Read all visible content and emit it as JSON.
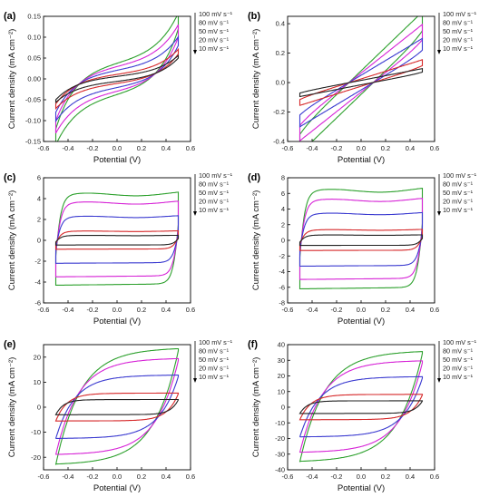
{
  "chart_data": [
    {
      "panel": "(a)",
      "type": "line",
      "xlabel": "Potential (V)",
      "ylabel": "Current density (mA cm⁻²)",
      "xlim": [
        -0.6,
        0.6
      ],
      "ylim": [
        -0.15,
        0.15
      ],
      "xticks": [
        -0.6,
        -0.4,
        -0.2,
        0.0,
        0.2,
        0.4,
        0.6
      ],
      "xtick_labels": [
        "-0.6",
        "-0.4",
        "-0.2",
        "0.0",
        "0.2",
        "0.4",
        "0.6"
      ],
      "yticks": [
        -0.15,
        -0.1,
        -0.05,
        0.0,
        0.05,
        0.1,
        0.15
      ],
      "ytick_labels": [
        "-0.15",
        "-0.10",
        "-0.05",
        "0.00",
        "0.05",
        "0.10",
        "0.15"
      ],
      "legend": [
        "100 mV s⁻¹",
        "80 mV s⁻¹",
        "50 mV s⁻¹",
        "20 mV s⁻¹",
        "10 mV s⁻¹"
      ],
      "legend_placement": "top-right outside",
      "series": [
        {
          "name": "100 mV s⁻¹",
          "color": "#2ca02c",
          "scale": 0.038,
          "shape": "sloped",
          "switch": 0.12,
          "ramp": 0.1,
          "end": 0.12,
          "start": -0.12
        },
        {
          "name": "80 mV s⁻¹",
          "color": "#d622d6",
          "scale": 0.03,
          "shape": "sloped",
          "switch": 0.12,
          "ramp": 0.1,
          "end": 0.1,
          "start": -0.1
        },
        {
          "name": "50 mV s⁻¹",
          "color": "#3a3ad0",
          "scale": 0.021,
          "shape": "sloped",
          "switch": 0.12,
          "ramp": 0.1,
          "end": 0.08,
          "start": -0.08
        },
        {
          "name": "20 mV s⁻¹",
          "color": "#d62728",
          "scale": 0.011,
          "shape": "sloped",
          "switch": 0.12,
          "ramp": 0.1,
          "end": 0.06,
          "start": -0.06
        },
        {
          "name": "10 mV s⁻¹",
          "color": "#222222",
          "scale": 0.006,
          "shape": "sloped",
          "switch": 0.12,
          "ramp": 0.1,
          "end": 0.05,
          "start": -0.05
        }
      ]
    },
    {
      "panel": "(b)",
      "type": "line",
      "xlabel": "Potential (V)",
      "ylabel": "Current density (mA cm⁻²)",
      "xlim": [
        -0.6,
        0.6
      ],
      "ylim": [
        -0.4,
        0.45
      ],
      "xticks": [
        -0.6,
        -0.4,
        -0.2,
        0.0,
        0.2,
        0.4,
        0.6
      ],
      "xtick_labels": [
        "-0.6",
        "-0.4",
        "-0.2",
        "0.0",
        "0.2",
        "0.4",
        "0.6"
      ],
      "yticks": [
        -0.4,
        -0.2,
        0.0,
        0.2,
        0.4
      ],
      "ytick_labels": [
        "-0.4",
        "-0.2",
        "0.0",
        "0.2",
        "0.4"
      ],
      "legend": [
        "100 mV s⁻¹",
        "80 mV s⁻¹",
        "50 mV s⁻¹",
        "20 mV s⁻¹",
        "10 mV s⁻¹"
      ],
      "legend_placement": "top-right outside",
      "series": [
        {
          "name": "100 mV s⁻¹",
          "color": "#2ca02c",
          "scale": 0.08,
          "shape": "tilted",
          "switch": 0.08,
          "ramp": 0.4,
          "end": 0.4,
          "start": -0.38
        },
        {
          "name": "80 mV s⁻¹",
          "color": "#d622d6",
          "scale": 0.065,
          "shape": "tilted",
          "switch": 0.08,
          "ramp": 0.33,
          "end": 0.34,
          "start": -0.33
        },
        {
          "name": "50 mV s⁻¹",
          "color": "#3a3ad0",
          "scale": 0.05,
          "shape": "tilted",
          "switch": 0.08,
          "ramp": 0.25,
          "end": 0.27,
          "start": -0.26
        },
        {
          "name": "20 mV s⁻¹",
          "color": "#d62728",
          "scale": 0.025,
          "shape": "tilted",
          "switch": 0.08,
          "ramp": 0.13,
          "end": 0.18,
          "start": -0.15
        },
        {
          "name": "10 mV s⁻¹",
          "color": "#222222",
          "scale": 0.015,
          "shape": "tilted",
          "switch": 0.08,
          "ramp": 0.08,
          "end": 0.12,
          "start": -0.12
        }
      ]
    },
    {
      "panel": "(c)",
      "type": "line",
      "xlabel": "Potential (V)",
      "ylabel": "Current density (mA cm⁻²)",
      "xlim": [
        -0.6,
        0.6
      ],
      "ylim": [
        -6,
        6
      ],
      "xticks": [
        -0.6,
        -0.4,
        -0.2,
        0.0,
        0.2,
        0.4,
        0.6
      ],
      "xtick_labels": [
        "-0.6",
        "-0.4",
        "-0.2",
        "0.0",
        "0.2",
        "0.4",
        "0.6"
      ],
      "yticks": [
        -6,
        -4,
        -2,
        0,
        2,
        4,
        6
      ],
      "ytick_labels": [
        "-6",
        "-4",
        "-2",
        "0",
        "2",
        "4",
        "6"
      ],
      "legend": [
        "100 mV s⁻¹",
        "80 mV s⁻¹",
        "50 mV s⁻¹",
        "20 mV s⁻¹",
        "10 mV s⁻¹"
      ],
      "legend_placement": "top-right outside",
      "series": [
        {
          "name": "100 mV s⁻¹",
          "color": "#2ca02c",
          "scale": 4.3,
          "shape": "rect",
          "switch": 0.03,
          "ramp": 0.0
        },
        {
          "name": "80 mV s⁻¹",
          "color": "#d622d6",
          "scale": 3.5,
          "shape": "rect",
          "switch": 0.03,
          "ramp": 0.0
        },
        {
          "name": "50 mV s⁻¹",
          "color": "#3a3ad0",
          "scale": 2.2,
          "shape": "rect",
          "switch": 0.03,
          "ramp": 0.0
        },
        {
          "name": "20 mV s⁻¹",
          "color": "#d62728",
          "scale": 0.85,
          "shape": "rect",
          "switch": 0.03,
          "ramp": 0.0
        },
        {
          "name": "10 mV s⁻¹",
          "color": "#222222",
          "scale": 0.45,
          "shape": "rect",
          "switch": 0.03,
          "ramp": 0.0
        }
      ]
    },
    {
      "panel": "(d)",
      "type": "line",
      "xlabel": "Potential (V)",
      "ylabel": "Current density (mA cm⁻²)",
      "xlim": [
        -0.6,
        0.6
      ],
      "ylim": [
        -8,
        8
      ],
      "xticks": [
        -0.6,
        -0.4,
        -0.2,
        0.0,
        0.2,
        0.4,
        0.6
      ],
      "xtick_labels": [
        "-0.6",
        "-0.4",
        "-0.2",
        "0.0",
        "0.2",
        "0.4",
        "0.6"
      ],
      "yticks": [
        -8,
        -6,
        -4,
        -2,
        0,
        2,
        4,
        6,
        8
      ],
      "ytick_labels": [
        "-8",
        "-6",
        "-4",
        "-2",
        "0",
        "2",
        "4",
        "6",
        "8"
      ],
      "legend": [
        "100 mV s⁻¹",
        "80 mV s⁻¹",
        "50 mV s⁻¹",
        "20 mV s⁻¹",
        "10 mV s⁻¹"
      ],
      "legend_placement": "top-right outside",
      "series": [
        {
          "name": "100 mV s⁻¹",
          "color": "#2ca02c",
          "scale": 6.2,
          "shape": "rect",
          "switch": 0.03,
          "ramp": 0.0
        },
        {
          "name": "80 mV s⁻¹",
          "color": "#d622d6",
          "scale": 5.0,
          "shape": "rect",
          "switch": 0.03,
          "ramp": 0.0
        },
        {
          "name": "50 mV s⁻¹",
          "color": "#3a3ad0",
          "scale": 3.3,
          "shape": "rect",
          "switch": 0.03,
          "ramp": 0.0
        },
        {
          "name": "20 mV s⁻¹",
          "color": "#d62728",
          "scale": 1.3,
          "shape": "rect",
          "switch": 0.03,
          "ramp": 0.0
        },
        {
          "name": "10 mV s⁻¹",
          "color": "#222222",
          "scale": 0.65,
          "shape": "rect",
          "switch": 0.03,
          "ramp": 0.0
        }
      ]
    },
    {
      "panel": "(e)",
      "type": "line",
      "xlabel": "Potential (V)",
      "ylabel": "Current density (mA cm⁻²)",
      "xlim": [
        -0.6,
        0.6
      ],
      "ylim": [
        -25,
        25
      ],
      "xticks": [
        -0.6,
        -0.4,
        -0.2,
        0.0,
        0.2,
        0.4,
        0.6
      ],
      "xtick_labels": [
        "-0.6",
        "-0.4",
        "-0.2",
        "0.0",
        "0.2",
        "0.4",
        "0.6"
      ],
      "yticks": [
        -20,
        -10,
        0,
        10,
        20
      ],
      "ytick_labels": [
        "-20",
        "-10",
        "0",
        "10",
        "20"
      ],
      "legend": [
        "100 mV s⁻¹",
        "80 mV s⁻¹",
        "50 mV s⁻¹",
        "20 mV s⁻¹",
        "10 mV s⁻¹"
      ],
      "legend_placement": "top-right outside",
      "series": [
        {
          "name": "100 mV s⁻¹",
          "color": "#2ca02c",
          "scale": 23,
          "shape": "lazy",
          "switch": 0.22,
          "ramp": 0.0
        },
        {
          "name": "80 mV s⁻¹",
          "color": "#d622d6",
          "scale": 19,
          "shape": "lazy",
          "switch": 0.2,
          "ramp": 0.0
        },
        {
          "name": "50 mV s⁻¹",
          "color": "#3a3ad0",
          "scale": 12.5,
          "shape": "lazy",
          "switch": 0.17,
          "ramp": 0.0
        },
        {
          "name": "20 mV s⁻¹",
          "color": "#d62728",
          "scale": 5.5,
          "shape": "lazy",
          "switch": 0.1,
          "ramp": 0.0
        },
        {
          "name": "10 mV s⁻¹",
          "color": "#222222",
          "scale": 3.0,
          "shape": "lazy",
          "switch": 0.07,
          "ramp": 0.0
        }
      ]
    },
    {
      "panel": "(f)",
      "type": "line",
      "xlabel": "Potential (V)",
      "ylabel": "Current density (mA cm⁻²)",
      "xlim": [
        -0.6,
        0.6
      ],
      "ylim": [
        -40,
        40
      ],
      "xticks": [
        -0.6,
        -0.4,
        -0.2,
        0.0,
        0.2,
        0.4,
        0.6
      ],
      "xtick_labels": [
        "-0.6",
        "-0.4",
        "-0.2",
        "0.0",
        "0.2",
        "0.4",
        "0.6"
      ],
      "yticks": [
        -40,
        -30,
        -20,
        -10,
        0,
        10,
        20,
        30,
        40
      ],
      "ytick_labels": [
        "-40",
        "-30",
        "-20",
        "-10",
        "0",
        "10",
        "20",
        "30",
        "40"
      ],
      "legend": [
        "100 mV s⁻¹",
        "80 mV s⁻¹",
        "50 mV s⁻¹",
        "20 mV s⁻¹",
        "10 mV s⁻¹"
      ],
      "legend_placement": "top-right outside",
      "series": [
        {
          "name": "100 mV s⁻¹",
          "color": "#2ca02c",
          "scale": 35,
          "shape": "lazy",
          "switch": 0.22,
          "ramp": 0.0
        },
        {
          "name": "80 mV s⁻¹",
          "color": "#d622d6",
          "scale": 29,
          "shape": "lazy",
          "switch": 0.2,
          "ramp": 0.0
        },
        {
          "name": "50 mV s⁻¹",
          "color": "#3a3ad0",
          "scale": 19,
          "shape": "lazy",
          "switch": 0.17,
          "ramp": 0.0
        },
        {
          "name": "20 mV s⁻¹",
          "color": "#d62728",
          "scale": 8,
          "shape": "lazy",
          "switch": 0.1,
          "ramp": 0.0
        },
        {
          "name": "10 mV s⁻¹",
          "color": "#222222",
          "scale": 4,
          "shape": "lazy",
          "switch": 0.07,
          "ramp": 0.0
        }
      ]
    }
  ]
}
